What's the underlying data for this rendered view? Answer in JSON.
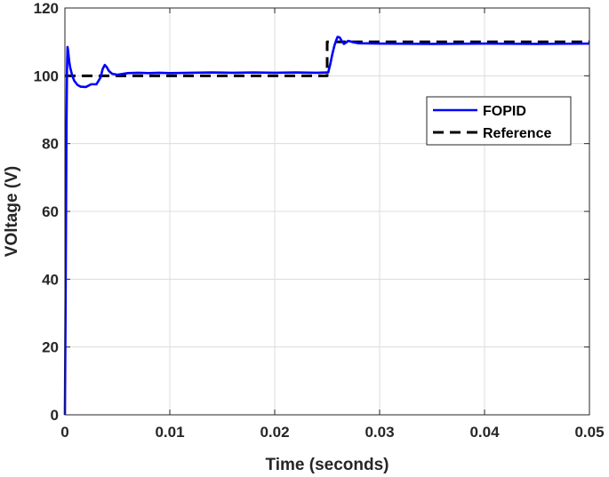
{
  "chart_data": {
    "type": "line",
    "title": "",
    "xlabel": "Time (seconds)",
    "ylabel": "VOltage (V)",
    "xlim": [
      0,
      0.05
    ],
    "ylim": [
      0,
      120
    ],
    "xticks": [
      0,
      0.01,
      0.02,
      0.03,
      0.04,
      0.05
    ],
    "xtick_labels": [
      "0",
      "0.01",
      "0.02",
      "0.03",
      "0.04",
      "0.05"
    ],
    "yticks": [
      0,
      20,
      40,
      60,
      80,
      100,
      120
    ],
    "ytick_labels": [
      "0",
      "20",
      "40",
      "60",
      "80",
      "100",
      "120"
    ],
    "grid": true,
    "legend_position": "top-right",
    "series": [
      {
        "name": "FOPID",
        "color": "#0000ff",
        "style": "solid",
        "x": [
          0,
          5e-05,
          0.0001,
          0.00015,
          0.0002,
          0.00025,
          0.0003,
          0.00035,
          0.0004,
          0.0005,
          0.0007,
          0.0009,
          0.0012,
          0.0015,
          0.002,
          0.0025,
          0.003,
          0.0034,
          0.0036,
          0.0038,
          0.004,
          0.0042,
          0.0045,
          0.005,
          0.006,
          0.007,
          0.008,
          0.009,
          0.01,
          0.012,
          0.014,
          0.016,
          0.018,
          0.02,
          0.022,
          0.024,
          0.025,
          0.0251,
          0.0253,
          0.0255,
          0.0257,
          0.0259,
          0.026,
          0.0262,
          0.0264,
          0.0266,
          0.0268,
          0.027,
          0.0275,
          0.028,
          0.03,
          0.035,
          0.04,
          0.045,
          0.05
        ],
        "y": [
          0,
          25,
          55,
          85,
          102,
          108.5,
          107.5,
          106,
          104.5,
          102.5,
          100,
          98.5,
          97.3,
          96.8,
          96.7,
          97.5,
          97.5,
          99.5,
          102,
          103.2,
          102.5,
          101.4,
          100.6,
          100.3,
          100.8,
          100.9,
          100.8,
          100.9,
          100.8,
          100.9,
          101,
          100.9,
          101,
          100.9,
          101,
          100.9,
          101,
          101,
          103.5,
          106.5,
          109,
          110.8,
          111.5,
          111.3,
          110.2,
          109.4,
          109.8,
          110.3,
          109.9,
          109.6,
          109.5,
          109.4,
          109.5,
          109.4,
          109.5
        ]
      },
      {
        "name": "Reference",
        "color": "#000000",
        "style": "dashed",
        "x": [
          0,
          0.025,
          0.025,
          0.05
        ],
        "y": [
          100,
          100,
          110,
          110
        ]
      }
    ]
  }
}
